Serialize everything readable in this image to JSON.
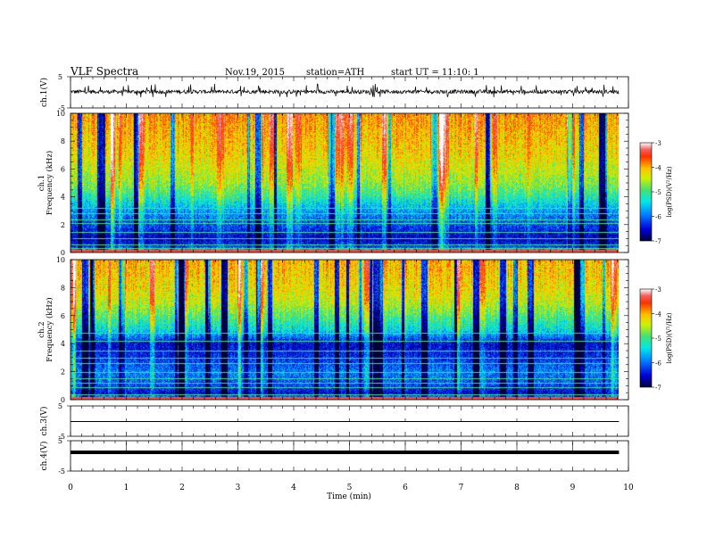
{
  "header": {
    "title": "VLF Spectra",
    "date": "Nov.19, 2015",
    "station": "station=ATH",
    "start": "start  UT =   11:10: 1"
  },
  "chart_data": [
    {
      "type": "line",
      "panel": "ch1-waveform",
      "ylabel": "ch.1(V)",
      "ylim": [
        -5,
        5
      ],
      "yticks": [
        "5",
        "-5"
      ],
      "color": "#000000",
      "series": [
        {
          "x_range_min": [
            0,
            9.83
          ],
          "y_baseline": 0.2,
          "y_noise_amplitude": 0.6,
          "y_spike_extent": [
            -1.6,
            2.8
          ]
        }
      ]
    },
    {
      "type": "heatmap",
      "panel": "ch1-spectrogram",
      "ylabel_line1": "ch.1",
      "ylabel_line2": "Frequency (kHz)",
      "ylim": [
        0,
        10
      ],
      "yticks": [
        "0",
        "2",
        "4",
        "6",
        "8",
        "10"
      ],
      "x_range_min": [
        0,
        9.83
      ],
      "colorbar": {
        "label": "log(PSD)(V²/Hz)",
        "range": [
          -7,
          -3
        ],
        "ticks": [
          "-3",
          "-4",
          "-5",
          "-6",
          "-7"
        ]
      },
      "profile": [
        [
          0,
          -5.5
        ],
        [
          0.5,
          -6.3
        ],
        [
          1,
          -6.6
        ],
        [
          2,
          -6.2
        ],
        [
          3,
          -5.9
        ],
        [
          4,
          -5.4
        ],
        [
          5,
          -5.0
        ],
        [
          6,
          -4.8
        ],
        [
          7,
          -4.6
        ],
        [
          8,
          -4.5
        ],
        [
          9,
          -4.4
        ],
        [
          10,
          -4.3
        ]
      ],
      "lines": [
        0.3,
        0.6,
        1.0,
        1.5,
        2.1,
        2.4,
        2.8,
        3.2
      ],
      "burst_count": 45
    },
    {
      "type": "heatmap",
      "panel": "ch2-spectrogram",
      "ylabel_line1": "ch.2",
      "ylabel_line2": "Frequency (kHz)",
      "ylim": [
        0,
        10
      ],
      "yticks": [
        "0",
        "2",
        "4",
        "6",
        "8",
        "10"
      ],
      "x_range_min": [
        0,
        9.83
      ],
      "colorbar": {
        "label": "log(PSD)(V²/Hz)",
        "range": [
          -7,
          -3
        ],
        "ticks": [
          "-3",
          "-4",
          "-5",
          "-6",
          "-7"
        ]
      },
      "profile": [
        [
          0,
          -5.6
        ],
        [
          0.5,
          -6.5
        ],
        [
          1,
          -6.2
        ],
        [
          2,
          -6.0
        ],
        [
          3,
          -6.3
        ],
        [
          4,
          -6.5
        ],
        [
          5,
          -5.6
        ],
        [
          6,
          -5.2
        ],
        [
          7,
          -4.8
        ],
        [
          8,
          -4.6
        ],
        [
          9,
          -4.5
        ],
        [
          10,
          -4.4
        ]
      ],
      "lines": [
        0.4,
        0.9,
        1.2,
        1.5,
        2.0,
        2.6,
        3.0,
        3.5,
        4.2,
        4.8
      ],
      "burst_count": 45
    },
    {
      "type": "line",
      "panel": "ch3-waveform",
      "ylabel": "ch.3(V)",
      "ylim": [
        -5,
        5
      ],
      "yticks": [
        "5",
        "-5"
      ],
      "color": "#000000",
      "series": [
        {
          "x_range_min": [
            0,
            9.83
          ],
          "y_baseline": 0.0,
          "y_noise_amplitude": 0.0,
          "y_spike_extent": [
            0,
            0
          ]
        }
      ]
    },
    {
      "type": "line",
      "panel": "ch4-waveform",
      "ylabel": "ch.4(V)",
      "ylim": [
        -5,
        5
      ],
      "yticks": [
        "5",
        "-5"
      ],
      "color": "#000000",
      "series": [
        {
          "x_range_min": [
            0,
            9.83
          ],
          "y_baseline": 0.0,
          "y_noise_amplitude": 0.0,
          "y_spike_extent": [
            0,
            0
          ]
        }
      ]
    }
  ],
  "xaxis": {
    "label": "Time  (min)",
    "range": [
      0,
      10
    ],
    "ticks": [
      "0",
      "1",
      "2",
      "3",
      "4",
      "5",
      "6",
      "7",
      "8",
      "9",
      "10"
    ]
  }
}
